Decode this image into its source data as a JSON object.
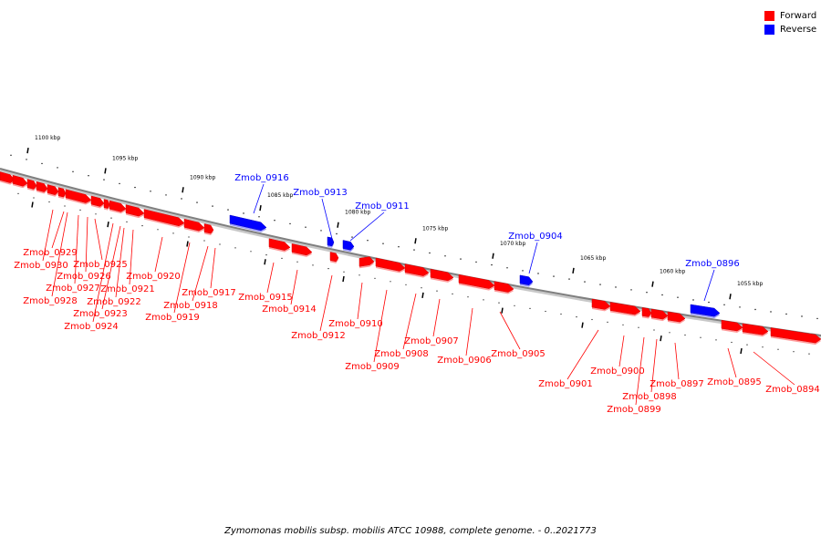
{
  "legend": [
    {
      "label": "Forward",
      "color": "#ff0000"
    },
    {
      "label": "Reverse",
      "color": "#0000ff"
    }
  ],
  "caption": "Zymomonas mobilis subsp. mobilis ATCC 10988, complete genome. - 0..2021773",
  "colors": {
    "forward": "#ff0000",
    "reverse": "#0000ff",
    "backbone": "#7f7f7f"
  },
  "ticks": [
    "1100 kbp",
    "1095 kbp",
    "1090 kbp",
    "1085 kbp",
    "1080 kbp",
    "1075 kbp",
    "1070 kbp",
    "1065 kbp",
    "1060 kbp",
    "1055 kbp"
  ],
  "genes": [
    {
      "name": "Zmob_0930",
      "strand": "forward"
    },
    {
      "name": "Zmob_0929",
      "strand": "forward"
    },
    {
      "name": "Zmob_0928",
      "strand": "forward"
    },
    {
      "name": "Zmob_0927",
      "strand": "forward"
    },
    {
      "name": "Zmob_0926",
      "strand": "forward"
    },
    {
      "name": "Zmob_0925",
      "strand": "forward"
    },
    {
      "name": "Zmob_0924",
      "strand": "forward"
    },
    {
      "name": "Zmob_0923",
      "strand": "forward"
    },
    {
      "name": "Zmob_0922",
      "strand": "forward"
    },
    {
      "name": "Zmob_0921",
      "strand": "forward"
    },
    {
      "name": "Zmob_0920",
      "strand": "forward"
    },
    {
      "name": "Zmob_0919",
      "strand": "forward"
    },
    {
      "name": "Zmob_0918",
      "strand": "forward"
    },
    {
      "name": "Zmob_0917",
      "strand": "forward"
    },
    {
      "name": "Zmob_0916",
      "strand": "reverse"
    },
    {
      "name": "Zmob_0915",
      "strand": "forward"
    },
    {
      "name": "Zmob_0914",
      "strand": "forward"
    },
    {
      "name": "Zmob_0913",
      "strand": "reverse"
    },
    {
      "name": "Zmob_0912",
      "strand": "forward"
    },
    {
      "name": "Zmob_0911",
      "strand": "reverse"
    },
    {
      "name": "Zmob_0910",
      "strand": "forward"
    },
    {
      "name": "Zmob_0909",
      "strand": "forward"
    },
    {
      "name": "Zmob_0908",
      "strand": "forward"
    },
    {
      "name": "Zmob_0907",
      "strand": "forward"
    },
    {
      "name": "Zmob_0906",
      "strand": "forward"
    },
    {
      "name": "Zmob_0905",
      "strand": "forward"
    },
    {
      "name": "Zmob_0904",
      "strand": "reverse"
    },
    {
      "name": "Zmob_0901",
      "strand": "forward"
    },
    {
      "name": "Zmob_0900",
      "strand": "forward"
    },
    {
      "name": "Zmob_0899",
      "strand": "forward"
    },
    {
      "name": "Zmob_0898",
      "strand": "forward"
    },
    {
      "name": "Zmob_0897",
      "strand": "forward"
    },
    {
      "name": "Zmob_0896",
      "strand": "reverse"
    },
    {
      "name": "Zmob_0895",
      "strand": "forward"
    },
    {
      "name": "Zmob_0894",
      "strand": "forward"
    }
  ]
}
